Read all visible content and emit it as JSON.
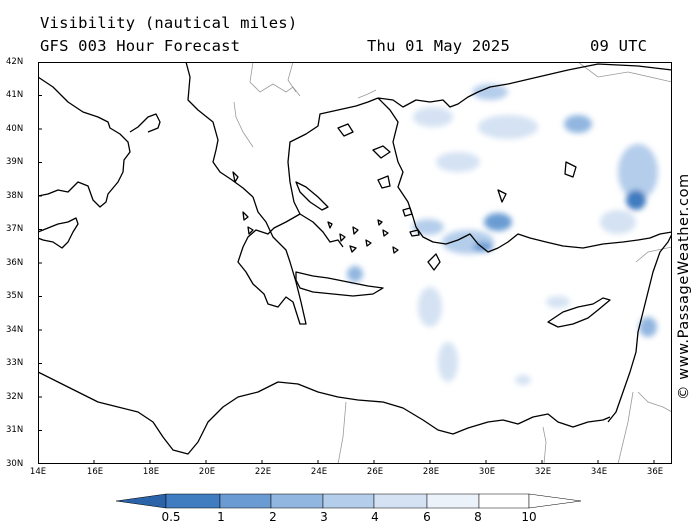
{
  "title": "Visibility (nautical miles)",
  "subtitle": "GFS 003 Hour Forecast",
  "date": "Thu 01 May 2025",
  "time": "09 UTC",
  "credit": "© www.PassageWeather.com",
  "lat_labels": [
    "42N",
    "41N",
    "40N",
    "39N",
    "38N",
    "37N",
    "36N",
    "35N",
    "34N",
    "33N",
    "32N",
    "31N",
    "30N"
  ],
  "lon_labels": [
    "14E",
    "16E",
    "18E",
    "20E",
    "22E",
    "24E",
    "26E",
    "28E",
    "30E",
    "32E",
    "34E",
    "36E"
  ],
  "colorbar": {
    "labels": [
      "0.5",
      "1",
      "2",
      "3",
      "4",
      "6",
      "8",
      "10"
    ],
    "colors": [
      "#2b63a8",
      "#3f7cc0",
      "#6a9cd3",
      "#91b6e0",
      "#b4cdeb",
      "#d4e2f3",
      "#ecf2fa"
    ]
  },
  "colors": {
    "land_border": "#000000",
    "country_border": "#9a9a9a",
    "low_vis": "#6a9cd3"
  }
}
